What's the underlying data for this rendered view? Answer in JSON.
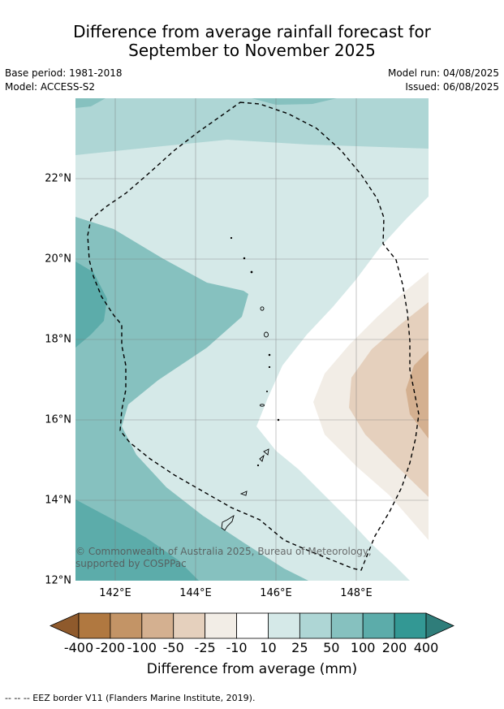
{
  "title_line1": "Difference from average rainfall forecast for",
  "title_line2": "September to November 2025",
  "meta": {
    "base_period": "Base period: 1981-2018",
    "model": "Model: ACCESS-S2",
    "model_run": "Model run: 04/08/2025",
    "issued": "Issued: 06/08/2025"
  },
  "lat_labels": [
    "22°N",
    "20°N",
    "18°N",
    "16°N",
    "14°N",
    "12°N"
  ],
  "lon_labels": [
    "142°E",
    "144°E",
    "146°E",
    "148°E"
  ],
  "copyright": "© Commonwealth of Australia 2025, Bureau of Meteorology, supported by COSPPac",
  "colorbar": {
    "tick_labels": [
      "-400",
      "-200",
      "-100",
      "-50",
      "-25",
      "-10",
      "10",
      "25",
      "50",
      "100",
      "200",
      "400"
    ],
    "colors": [
      "#b07840",
      "#c39466",
      "#d4b090",
      "#e5d0bd",
      "#f2ede6",
      "#ffffff",
      "#d5e9e8",
      "#aed6d5",
      "#86c1bf",
      "#5cacaa",
      "#339894"
    ],
    "under_color": "#8f5a2c",
    "over_color": "#2f7d7a",
    "title": "Difference from average (mm)"
  },
  "legend_note": "--  --  -- EEZ border V11 (Flanders Marine Institute, 2019)."
}
